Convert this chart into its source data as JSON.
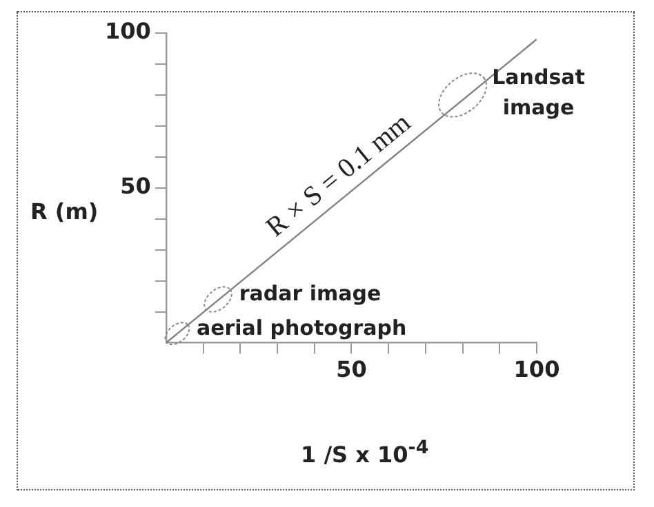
{
  "chart_data": {
    "type": "line",
    "xlabel": "1 /S x 10$^{-4}$",
    "ylabel": "R (m)",
    "x": [
      0,
      100
    ],
    "series": [
      {
        "name": "R × S = 0.1 mm",
        "color": "#808080",
        "values": [
          0,
          98
        ]
      }
    ],
    "xlim": [
      0,
      100
    ],
    "ylim": [
      0,
      100
    ],
    "xticks": [
      {
        "value": 10,
        "label": null
      },
      {
        "value": 20,
        "label": null
      },
      {
        "value": 30,
        "label": null
      },
      {
        "value": 40,
        "label": null
      },
      50,
      {
        "value": 60,
        "label": null
      },
      {
        "value": 70,
        "label": null
      },
      {
        "value": 80,
        "label": null
      },
      {
        "value": 90,
        "label": null
      },
      100
    ],
    "yticks": [
      {
        "value": 10,
        "label": null
      },
      {
        "value": 20,
        "label": null
      },
      {
        "value": 30,
        "label": null
      },
      {
        "value": 40,
        "label": null
      },
      50,
      {
        "value": 60,
        "label": null
      },
      {
        "value": 70,
        "label": null
      },
      {
        "value": 80,
        "label": null
      },
      {
        "value": 90,
        "label": null
      },
      100
    ],
    "marker": "none",
    "line_style": "solid",
    "grid": false,
    "legend": false,
    "annotations": [
      {
        "text": "aerial photograph",
        "x": 3,
        "y": 3
      },
      {
        "text": "radar image",
        "x": 14,
        "y": 14
      },
      {
        "text": "Landsat image",
        "x": 80,
        "y": 80
      }
    ]
  }
}
